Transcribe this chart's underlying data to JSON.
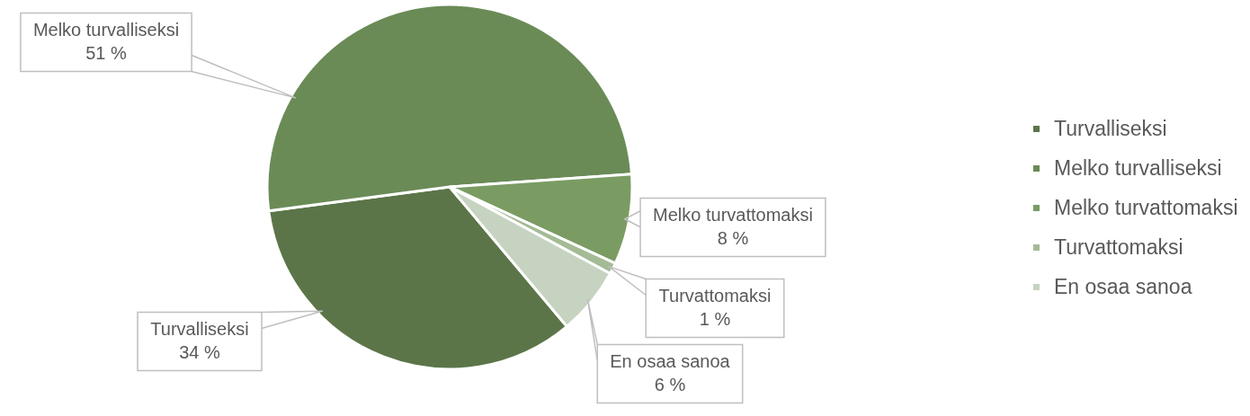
{
  "chart_data": {
    "type": "pie",
    "categories": [
      "Turvalliseksi",
      "Melko turvalliseksi",
      "Melko turvattomaksi",
      "Turvattomaksi",
      "En osaa sanoa"
    ],
    "values": [
      34,
      51,
      8,
      1,
      6
    ],
    "colors": [
      "#5b7548",
      "#6a8b56",
      "#7a9c63",
      "#a4bb96",
      "#c6d3c0"
    ],
    "value_labels": [
      "34 %",
      "51 %",
      "8 %",
      "1 %",
      "6 %"
    ],
    "legend": "right"
  }
}
